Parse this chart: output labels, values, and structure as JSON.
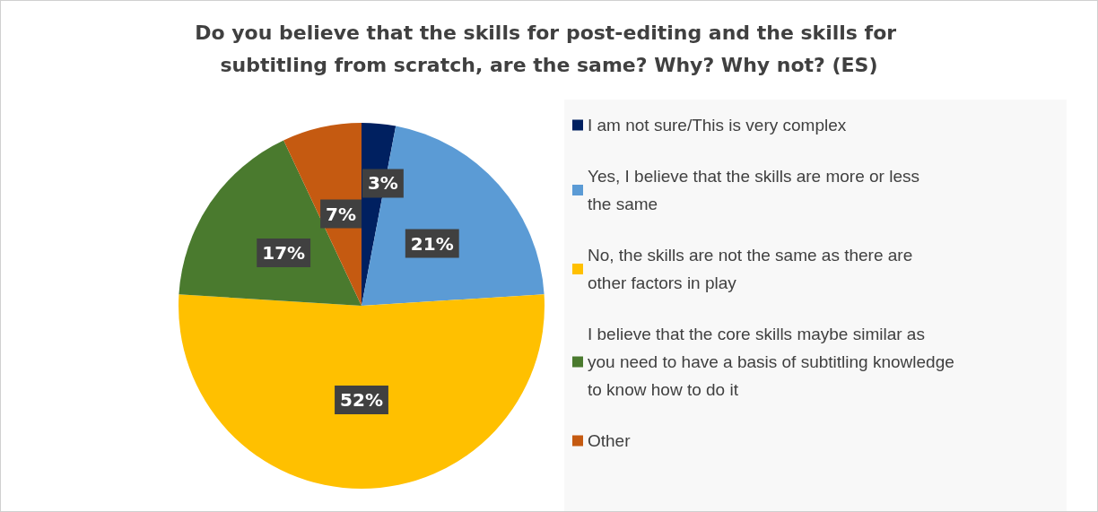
{
  "chart_data": {
    "type": "pie",
    "title": "Do you believe that the skills for post-editing and the skills for subtitling from scratch, are the same? Why? Why not? (ES)",
    "categories": [
      "I am not sure/This is very complex",
      "Yes, I believe that the skills are more or less the same",
      "No, the skills are not the same as there are other factors in play",
      "I believe that the core skills maybe similar as you need to have a basis of subtitling knowledge to know how to do it",
      "Other"
    ],
    "values": [
      3,
      21,
      52,
      17,
      7
    ],
    "colors": [
      "#002060",
      "#5b9bd5",
      "#ffc000",
      "#4a7a2e",
      "#c55a11"
    ],
    "value_labels": [
      "3%",
      "21%",
      "52%",
      "17%",
      "7%"
    ],
    "legend": "right"
  }
}
